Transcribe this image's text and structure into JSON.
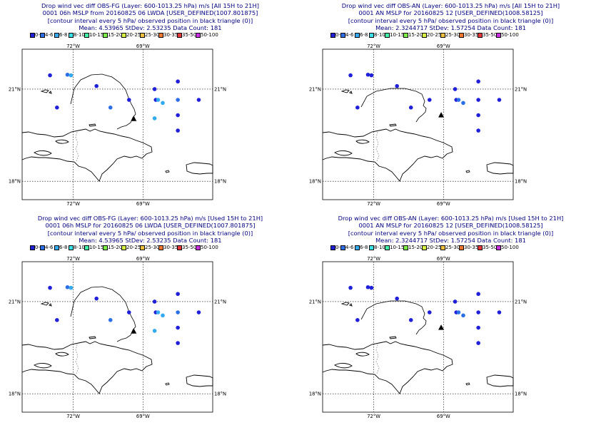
{
  "legend": [
    {
      "label": "0-4",
      "color": "#2020d8"
    },
    {
      "label": "4-6",
      "color": "#2c6ee6"
    },
    {
      "label": "6-8",
      "color": "#34aaf0"
    },
    {
      "label": "8-10",
      "color": "#3ce0e8"
    },
    {
      "label": "10-15",
      "color": "#42f0a8"
    },
    {
      "label": "15-20",
      "color": "#7cf046"
    },
    {
      "label": "20-25",
      "color": "#d8f040"
    },
    {
      "label": "25-30",
      "color": "#f0c040"
    },
    {
      "label": "30-35",
      "color": "#f07830"
    },
    {
      "label": "35-50",
      "color": "#e83838"
    },
    {
      "label": "50-100",
      "color": "#c830e0"
    }
  ],
  "axes": {
    "lon_labels": [
      "72°W",
      "69°W"
    ],
    "lat_labels": [
      "21°N",
      "18°N"
    ]
  },
  "panels": [
    {
      "title1": "Drop wind vec diff OBS-FG (Layer: 600-1013.25 hPa) m/s [All 15H to 21H]",
      "title2": "0001 06h MSLP from 20160825 06 LWDA [USER_DEFINED(1007.801875]",
      "title3": "[contour interval every 5 hPa/ observed position in black triangle (0)]",
      "title4": "Mean: 4.53965 StDev: 2.53235 Data Count: 181",
      "mode": "fg",
      "triangle": {
        "lon": -69.4,
        "lat": 20.03
      },
      "points": [
        {
          "lon": -73.0,
          "lat": 21.45,
          "c": 0
        },
        {
          "lon": -72.25,
          "lat": 21.47,
          "c": 1
        },
        {
          "lon": -72.1,
          "lat": 21.45,
          "c": 2
        },
        {
          "lon": -71.0,
          "lat": 21.1,
          "c": 0
        },
        {
          "lon": -68.5,
          "lat": 21.0,
          "c": 0
        },
        {
          "lon": -67.5,
          "lat": 21.25,
          "c": 0
        },
        {
          "lon": -69.6,
          "lat": 20.65,
          "c": 0
        },
        {
          "lon": -68.45,
          "lat": 20.65,
          "c": 0
        },
        {
          "lon": -68.35,
          "lat": 20.65,
          "c": 2
        },
        {
          "lon": -68.15,
          "lat": 20.55,
          "c": 2
        },
        {
          "lon": -67.5,
          "lat": 20.65,
          "c": 1
        },
        {
          "lon": -67.5,
          "lat": 20.15,
          "c": 0
        },
        {
          "lon": -67.5,
          "lat": 19.65,
          "c": 0
        },
        {
          "lon": -66.6,
          "lat": 20.65,
          "c": 0
        },
        {
          "lon": -72.7,
          "lat": 20.4,
          "c": 0
        },
        {
          "lon": -70.4,
          "lat": 20.4,
          "c": 1
        },
        {
          "lon": -68.5,
          "lat": 20.05,
          "c": 2
        }
      ]
    },
    {
      "title1": "Drop wind vec diff OBS-AN (Layer: 600-1013.25 hPa) m/s [All 15H to 21H]",
      "title2": "0001 AN MSLP for 20160825 12 [USER_DEFINED(1008.58125]",
      "title3": "[contour interval every 5 hPa/ observed position in black triangle (0)]",
      "title4": "Mean: 2.3244717 StDev: 1.57254 Data Count: 181",
      "mode": "an",
      "triangle": {
        "lon": -69.1,
        "lat": 20.15
      },
      "points": [
        {
          "lon": -73.0,
          "lat": 21.45,
          "c": 0
        },
        {
          "lon": -72.25,
          "lat": 21.47,
          "c": 0
        },
        {
          "lon": -72.1,
          "lat": 21.45,
          "c": 0
        },
        {
          "lon": -71.0,
          "lat": 21.1,
          "c": 0
        },
        {
          "lon": -68.5,
          "lat": 21.0,
          "c": 0
        },
        {
          "lon": -67.5,
          "lat": 21.25,
          "c": 0
        },
        {
          "lon": -69.6,
          "lat": 20.65,
          "c": 0
        },
        {
          "lon": -68.45,
          "lat": 20.65,
          "c": 0
        },
        {
          "lon": -68.35,
          "lat": 20.65,
          "c": 1
        },
        {
          "lon": -68.15,
          "lat": 20.55,
          "c": 1
        },
        {
          "lon": -67.5,
          "lat": 20.65,
          "c": 0
        },
        {
          "lon": -67.5,
          "lat": 20.15,
          "c": 0
        },
        {
          "lon": -67.5,
          "lat": 19.65,
          "c": 0
        },
        {
          "lon": -66.6,
          "lat": 20.65,
          "c": 0
        },
        {
          "lon": -72.7,
          "lat": 20.4,
          "c": 0
        },
        {
          "lon": -70.4,
          "lat": 20.4,
          "c": 0
        }
      ]
    },
    {
      "title1": "Drop wind vec diff OBS-FG (Layer: 600-1013.25 hPa) m/s [Used 15H to 21H]",
      "title2": "0001 06h MSLP for 20160825 06 LWDA [USER_DEFINED(1007.801875]",
      "title3": "[contour interval every 5 hPa/ observed position in black triangle (0)]",
      "title4": "Mean: 4.53965 StDev: 2.53235 Data Count: 181",
      "mode": "fg",
      "triangle": {
        "lon": -69.4,
        "lat": 20.03
      },
      "points": [
        {
          "lon": -73.0,
          "lat": 21.45,
          "c": 0
        },
        {
          "lon": -72.25,
          "lat": 21.47,
          "c": 1
        },
        {
          "lon": -72.1,
          "lat": 21.45,
          "c": 2
        },
        {
          "lon": -71.0,
          "lat": 21.1,
          "c": 0
        },
        {
          "lon": -68.5,
          "lat": 21.0,
          "c": 0
        },
        {
          "lon": -67.5,
          "lat": 21.25,
          "c": 0
        },
        {
          "lon": -69.6,
          "lat": 20.65,
          "c": 0
        },
        {
          "lon": -68.45,
          "lat": 20.65,
          "c": 0
        },
        {
          "lon": -68.35,
          "lat": 20.65,
          "c": 2
        },
        {
          "lon": -68.15,
          "lat": 20.55,
          "c": 2
        },
        {
          "lon": -67.5,
          "lat": 20.65,
          "c": 1
        },
        {
          "lon": -67.5,
          "lat": 20.15,
          "c": 0
        },
        {
          "lon": -67.5,
          "lat": 19.65,
          "c": 0
        },
        {
          "lon": -66.6,
          "lat": 20.65,
          "c": 0
        },
        {
          "lon": -72.7,
          "lat": 20.4,
          "c": 0
        },
        {
          "lon": -70.4,
          "lat": 20.4,
          "c": 1
        },
        {
          "lon": -68.5,
          "lat": 20.05,
          "c": 2
        }
      ]
    },
    {
      "title1": "Drop wind vec diff OBS-AN (Layer: 600-1013.25 hPa) m/s [Used 15H to 21H]",
      "title2": "0001 AN MSLP for 20160825 12 [USER_DEFINED(1008.58125]",
      "title3": "[contour interval every 5 hPa/ observed position in black triangle (0)]",
      "title4": "Mean: 2.3244717 StDev: 1.57254 Data Count: 181",
      "mode": "an",
      "triangle": {
        "lon": -69.1,
        "lat": 20.15
      },
      "points": [
        {
          "lon": -73.0,
          "lat": 21.45,
          "c": 0
        },
        {
          "lon": -72.25,
          "lat": 21.47,
          "c": 0
        },
        {
          "lon": -72.1,
          "lat": 21.45,
          "c": 0
        },
        {
          "lon": -71.0,
          "lat": 21.1,
          "c": 0
        },
        {
          "lon": -68.5,
          "lat": 21.0,
          "c": 0
        },
        {
          "lon": -67.5,
          "lat": 21.25,
          "c": 0
        },
        {
          "lon": -69.6,
          "lat": 20.65,
          "c": 0
        },
        {
          "lon": -68.45,
          "lat": 20.65,
          "c": 0
        },
        {
          "lon": -68.35,
          "lat": 20.65,
          "c": 1
        },
        {
          "lon": -68.15,
          "lat": 20.55,
          "c": 1
        },
        {
          "lon": -67.5,
          "lat": 20.65,
          "c": 0
        },
        {
          "lon": -67.5,
          "lat": 20.15,
          "c": 0
        },
        {
          "lon": -67.5,
          "lat": 19.65,
          "c": 0
        },
        {
          "lon": -66.6,
          "lat": 20.65,
          "c": 0
        },
        {
          "lon": -72.7,
          "lat": 20.4,
          "c": 0
        },
        {
          "lon": -70.4,
          "lat": 20.4,
          "c": 0
        }
      ]
    }
  ]
}
